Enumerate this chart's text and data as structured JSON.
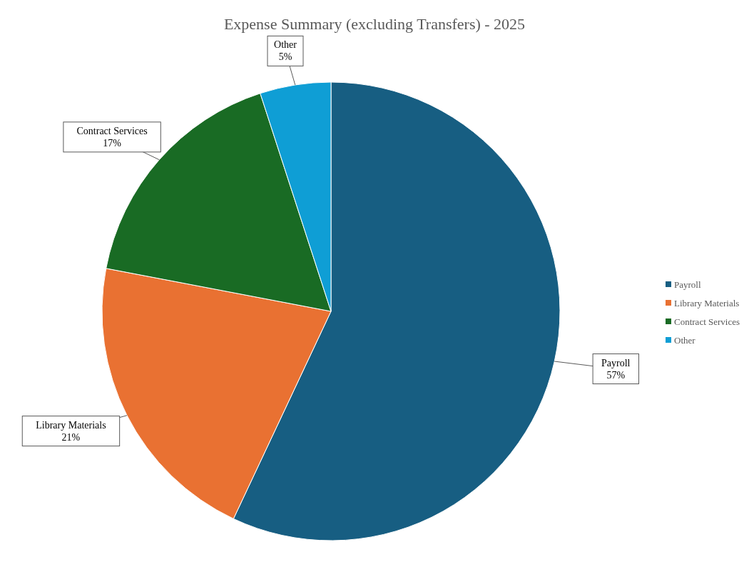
{
  "chart_data": {
    "type": "pie",
    "title": "Expense Summary (excluding Transfers) - 2025",
    "categories": [
      "Payroll",
      "Library Materials",
      "Contract Services",
      "Other"
    ],
    "values": [
      57,
      21,
      17,
      5
    ],
    "value_labels": [
      "57%",
      "21%",
      "17%",
      "5%"
    ],
    "colors": [
      "#175e82",
      "#e97132",
      "#196b24",
      "#0f9ed5"
    ],
    "legend": "right"
  }
}
